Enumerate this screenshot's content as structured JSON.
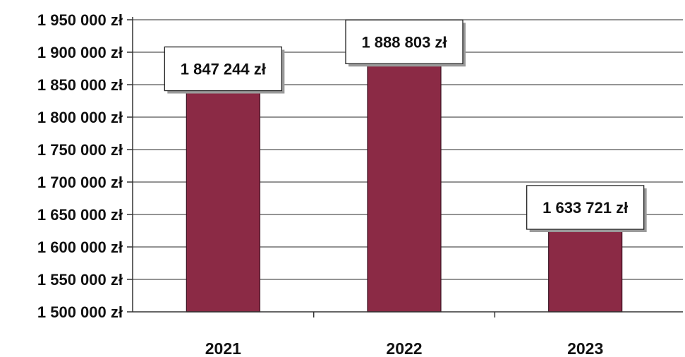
{
  "chart_data": {
    "type": "bar",
    "categories": [
      "2021",
      "2022",
      "2023"
    ],
    "values": [
      1847244,
      1888803,
      1633721
    ],
    "data_labels": [
      "1 847 244 zł",
      "1 888 803 zł",
      "1 633 721 zł"
    ],
    "yticks": [
      1500000,
      1550000,
      1600000,
      1650000,
      1700000,
      1750000,
      1800000,
      1850000,
      1900000,
      1950000
    ],
    "ytick_labels": [
      "1 500 000 zł",
      "1 550 000 zł",
      "1 600 000 zł",
      "1 650 000 zł",
      "1 700 000 zł",
      "1 750 000 zł",
      "1 800 000 zł",
      "1 850 000 zł",
      "1 900 000 zł",
      "1 950 000 zł"
    ],
    "ylim": [
      1500000,
      1950000
    ],
    "grid": true,
    "legend": "none",
    "title": "",
    "xlabel": "",
    "ylabel": "",
    "bar_color": "#8b2a45",
    "grid_color": "#555555"
  }
}
